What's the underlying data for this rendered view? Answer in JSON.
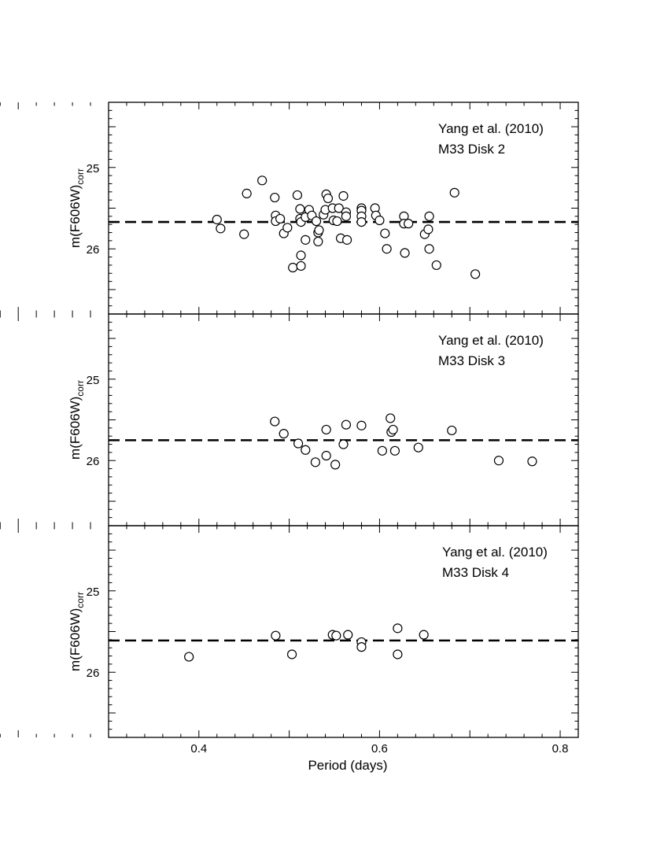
{
  "chart_data": [
    {
      "type": "scatter",
      "title": "",
      "annotation": [
        "Yang et al. (2010)",
        "M33 Disk 2"
      ],
      "ylabel_main": "m(F606W)",
      "ylabel_sub": "corr",
      "xlabel": "Period (days)",
      "xlim": [
        0.3,
        0.82
      ],
      "ylim": [
        24.2,
        26.8
      ],
      "y_inverted": true,
      "x_ticks": [
        "0.4",
        "0.6",
        "0.8"
      ],
      "y_ticks": [
        "25",
        "26"
      ],
      "reference_line": 25.67,
      "points": [
        {
          "x": 0.42,
          "y": 25.64
        },
        {
          "x": 0.424,
          "y": 25.75
        },
        {
          "x": 0.45,
          "y": 25.82
        },
        {
          "x": 0.453,
          "y": 25.32
        },
        {
          "x": 0.47,
          "y": 25.16
        },
        {
          "x": 0.484,
          "y": 25.37
        },
        {
          "x": 0.485,
          "y": 25.59
        },
        {
          "x": 0.485,
          "y": 25.66
        },
        {
          "x": 0.49,
          "y": 25.63
        },
        {
          "x": 0.494,
          "y": 25.81
        },
        {
          "x": 0.498,
          "y": 25.74
        },
        {
          "x": 0.504,
          "y": 26.23
        },
        {
          "x": 0.509,
          "y": 25.34
        },
        {
          "x": 0.512,
          "y": 25.51
        },
        {
          "x": 0.512,
          "y": 25.63
        },
        {
          "x": 0.513,
          "y": 25.67
        },
        {
          "x": 0.513,
          "y": 26.08
        },
        {
          "x": 0.513,
          "y": 26.21
        },
        {
          "x": 0.518,
          "y": 25.61
        },
        {
          "x": 0.518,
          "y": 25.89
        },
        {
          "x": 0.522,
          "y": 25.52
        },
        {
          "x": 0.525,
          "y": 25.59
        },
        {
          "x": 0.53,
          "y": 25.66
        },
        {
          "x": 0.532,
          "y": 25.8
        },
        {
          "x": 0.532,
          "y": 25.91
        },
        {
          "x": 0.533,
          "y": 25.77
        },
        {
          "x": 0.538,
          "y": 25.58
        },
        {
          "x": 0.54,
          "y": 25.52
        },
        {
          "x": 0.541,
          "y": 25.33
        },
        {
          "x": 0.543,
          "y": 25.38
        },
        {
          "x": 0.548,
          "y": 25.5
        },
        {
          "x": 0.549,
          "y": 25.65
        },
        {
          "x": 0.553,
          "y": 25.66
        },
        {
          "x": 0.555,
          "y": 25.5
        },
        {
          "x": 0.557,
          "y": 25.87
        },
        {
          "x": 0.56,
          "y": 25.35
        },
        {
          "x": 0.563,
          "y": 25.55
        },
        {
          "x": 0.563,
          "y": 25.6
        },
        {
          "x": 0.564,
          "y": 25.89
        },
        {
          "x": 0.58,
          "y": 25.5
        },
        {
          "x": 0.58,
          "y": 25.53
        },
        {
          "x": 0.58,
          "y": 25.6
        },
        {
          "x": 0.58,
          "y": 25.67
        },
        {
          "x": 0.595,
          "y": 25.5
        },
        {
          "x": 0.596,
          "y": 25.59
        },
        {
          "x": 0.6,
          "y": 25.65
        },
        {
          "x": 0.606,
          "y": 25.81
        },
        {
          "x": 0.608,
          "y": 26.0
        },
        {
          "x": 0.627,
          "y": 25.6
        },
        {
          "x": 0.627,
          "y": 25.69
        },
        {
          "x": 0.628,
          "y": 26.05
        },
        {
          "x": 0.632,
          "y": 25.69
        },
        {
          "x": 0.65,
          "y": 25.82
        },
        {
          "x": 0.654,
          "y": 25.76
        },
        {
          "x": 0.655,
          "y": 25.6
        },
        {
          "x": 0.655,
          "y": 26.0
        },
        {
          "x": 0.663,
          "y": 26.2
        },
        {
          "x": 0.683,
          "y": 25.31
        },
        {
          "x": 0.706,
          "y": 26.31
        }
      ]
    },
    {
      "type": "scatter",
      "title": "",
      "annotation": [
        "Yang et al. (2010)",
        "M33 Disk 3"
      ],
      "ylabel_main": "m(F606W)",
      "ylabel_sub": "corr",
      "xlabel": "Period (days)",
      "xlim": [
        0.3,
        0.82
      ],
      "ylim": [
        24.2,
        26.8
      ],
      "y_inverted": true,
      "x_ticks": [
        "0.4",
        "0.6",
        "0.8"
      ],
      "y_ticks": [
        "25",
        "26"
      ],
      "reference_line": 25.75,
      "points": [
        {
          "x": 0.484,
          "y": 25.52
        },
        {
          "x": 0.494,
          "y": 25.67
        },
        {
          "x": 0.51,
          "y": 25.79
        },
        {
          "x": 0.518,
          "y": 25.87
        },
        {
          "x": 0.529,
          "y": 26.02
        },
        {
          "x": 0.541,
          "y": 25.62
        },
        {
          "x": 0.541,
          "y": 25.94
        },
        {
          "x": 0.551,
          "y": 26.05
        },
        {
          "x": 0.56,
          "y": 25.8
        },
        {
          "x": 0.563,
          "y": 25.56
        },
        {
          "x": 0.58,
          "y": 25.57
        },
        {
          "x": 0.603,
          "y": 25.88
        },
        {
          "x": 0.612,
          "y": 25.48
        },
        {
          "x": 0.613,
          "y": 25.65
        },
        {
          "x": 0.615,
          "y": 25.62
        },
        {
          "x": 0.617,
          "y": 25.88
        },
        {
          "x": 0.643,
          "y": 25.84
        },
        {
          "x": 0.68,
          "y": 25.63
        },
        {
          "x": 0.732,
          "y": 26.0
        },
        {
          "x": 0.769,
          "y": 26.01
        }
      ]
    },
    {
      "type": "scatter",
      "title": "",
      "annotation": [
        "Yang et al. (2010)",
        "M33 Disk 4"
      ],
      "ylabel_main": "m(F606W)",
      "ylabel_sub": "corr",
      "xlabel": "Period (days)",
      "xlim": [
        0.3,
        0.82
      ],
      "ylim": [
        24.2,
        26.8
      ],
      "y_inverted": true,
      "x_ticks": [
        "0.4",
        "0.6",
        "0.8"
      ],
      "y_ticks": [
        "25",
        "26"
      ],
      "reference_line": 25.61,
      "points": [
        {
          "x": 0.389,
          "y": 25.81
        },
        {
          "x": 0.485,
          "y": 25.55
        },
        {
          "x": 0.503,
          "y": 25.78
        },
        {
          "x": 0.548,
          "y": 25.54
        },
        {
          "x": 0.552,
          "y": 25.55
        },
        {
          "x": 0.565,
          "y": 25.54
        },
        {
          "x": 0.58,
          "y": 25.63
        },
        {
          "x": 0.58,
          "y": 25.69
        },
        {
          "x": 0.62,
          "y": 25.46
        },
        {
          "x": 0.62,
          "y": 25.78
        },
        {
          "x": 0.649,
          "y": 25.54
        }
      ]
    }
  ]
}
